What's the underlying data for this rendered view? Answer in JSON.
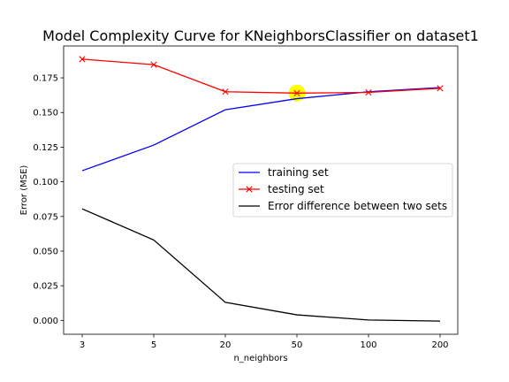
{
  "chart_data": {
    "type": "line",
    "title": "Model Complexity Curve for KNeighborsClassifier on dataset1",
    "xlabel": "n_neighbors",
    "ylabel": "Error (MSE)",
    "categories": [
      "3",
      "5",
      "20",
      "50",
      "100",
      "200"
    ],
    "ylim": [
      -0.01,
      0.198
    ],
    "yticks": [
      "0.000",
      "0.025",
      "0.050",
      "0.075",
      "0.100",
      "0.125",
      "0.150",
      "0.175"
    ],
    "legend_position": "center-right",
    "series": [
      {
        "name": "training set",
        "color": "#0000ff",
        "marker": "none",
        "values": [
          0.108,
          0.1265,
          0.152,
          0.16,
          0.165,
          0.168
        ]
      },
      {
        "name": "testing set",
        "color": "#ff0000",
        "marker": "x",
        "values": [
          0.1885,
          0.1845,
          0.165,
          0.164,
          0.1645,
          0.1675
        ]
      },
      {
        "name": "Error difference between two sets",
        "color": "#000000",
        "marker": "none",
        "values": [
          0.0805,
          0.058,
          0.013,
          0.004,
          0.0003,
          -0.0005
        ]
      }
    ],
    "highlight": {
      "category": "50",
      "value": 0.164,
      "color": "#ffff00"
    }
  }
}
